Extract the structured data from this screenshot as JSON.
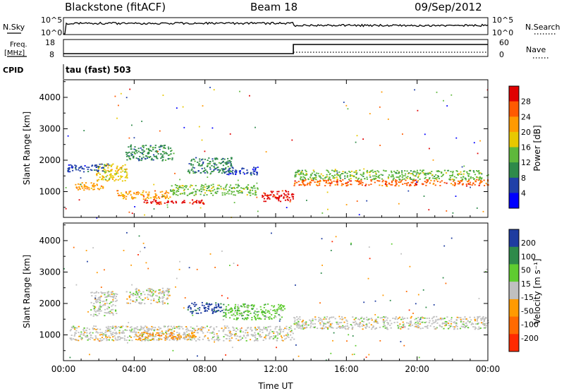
{
  "header": {
    "station": "Blackstone (fitACF)",
    "beam": "Beam 18",
    "date": "09/Sep/2012"
  },
  "top_panels": {
    "nsky_label": "N.Sky",
    "nsky_ticks": [
      "10^5",
      "10^0"
    ],
    "nsearch_label": "N.Search",
    "nsearch_ticks": [
      "10^5",
      "10^0"
    ],
    "freq_label_1": "Freq.",
    "freq_label_2": "[MHz]",
    "freq_ticks": [
      "18",
      "8"
    ],
    "nave_label": "Nave",
    "nave_ticks": [
      "60",
      "0"
    ],
    "cpid_label": "CPID",
    "cpid_text": "tau (fast) 503",
    "freq_step_hour": 13.0
  },
  "chart_data": [
    {
      "type": "heatmap",
      "name": "power-panel",
      "ylabel": "Slant Range [km]",
      "xlabel": "",
      "y_ticks": [
        1000,
        2000,
        3000,
        4000
      ],
      "ylim": [
        180,
        4560
      ],
      "x_ticks": [
        "00:00",
        "04:00",
        "08:00",
        "12:00",
        "16:00",
        "20:00",
        "00:00"
      ],
      "xlim_hours": [
        0,
        24
      ],
      "colorbar": {
        "label": "Power [dB]",
        "ticks": [
          "28",
          "24",
          "20",
          "16",
          "12",
          "8",
          "4"
        ],
        "colors": [
          "#e00000",
          "#ff5a00",
          "#ff9a00",
          "#e8c800",
          "#5fb83c",
          "#2e8a4a",
          "#2040a8",
          "#0000ff"
        ]
      },
      "echo_bands": [
        {
          "t": [
            0.5,
            2.2
          ],
          "r": [
            1050,
            1300
          ],
          "level": 2
        },
        {
          "t": [
            1.8,
            3.6
          ],
          "r": [
            1350,
            1900
          ],
          "level": 3
        },
        {
          "t": [
            3.0,
            6.0
          ],
          "r": [
            780,
            1050
          ],
          "level": 2
        },
        {
          "t": [
            4.5,
            8.0
          ],
          "r": [
            620,
            760
          ],
          "level": 0
        },
        {
          "t": [
            6.0,
            11.0
          ],
          "r": [
            900,
            1250
          ],
          "level": 4
        },
        {
          "t": [
            3.5,
            6.2
          ],
          "r": [
            2000,
            2500
          ],
          "level": 5
        },
        {
          "t": [
            7.0,
            9.5
          ],
          "r": [
            1600,
            2100
          ],
          "level": 5
        },
        {
          "t": [
            9.0,
            11.0
          ],
          "r": [
            1550,
            1800
          ],
          "level": 6
        },
        {
          "t": [
            11.2,
            13.0
          ],
          "r": [
            700,
            1050
          ],
          "level": 0
        },
        {
          "t": [
            13.0,
            24.0
          ],
          "r": [
            1200,
            1400
          ],
          "level": 1
        },
        {
          "t": [
            13.0,
            24.0
          ],
          "r": [
            1400,
            1700
          ],
          "level": 4
        },
        {
          "t": [
            0.2,
            2.5
          ],
          "r": [
            1650,
            1900
          ],
          "level": 6
        }
      ]
    },
    {
      "type": "heatmap",
      "name": "velocity-panel",
      "ylabel": "Slant Range [km]",
      "xlabel": "Time UT",
      "y_ticks": [
        1000,
        2000,
        3000,
        4000
      ],
      "ylim": [
        180,
        4560
      ],
      "x_ticks": [
        "00:00",
        "04:00",
        "08:00",
        "12:00",
        "16:00",
        "20:00",
        "00:00"
      ],
      "xlim_hours": [
        0,
        24
      ],
      "colorbar": {
        "label": "Velocity [m s⁻¹]",
        "ticks": [
          "200",
          "100",
          "50",
          "15",
          "-15",
          "-50",
          "-100",
          "-200"
        ],
        "colors": [
          "#1e3ca0",
          "#2e8a4a",
          "#5fcc30",
          "#c0c0c0",
          "#ff9a00",
          "#ff6a00",
          "#ff2a00"
        ]
      },
      "echo_bands": [
        {
          "t": [
            0.3,
            13.0
          ],
          "r": [
            830,
            1300
          ],
          "level": 3
        },
        {
          "t": [
            13.0,
            24.0
          ],
          "r": [
            1200,
            1600
          ],
          "level": 3
        },
        {
          "t": [
            4.0,
            7.5
          ],
          "r": [
            850,
            1100
          ],
          "level": 4
        },
        {
          "t": [
            7.0,
            9.0
          ],
          "r": [
            1700,
            2050
          ],
          "level": 0
        },
        {
          "t": [
            9.0,
            12.5
          ],
          "r": [
            1500,
            2000
          ],
          "level": 2
        },
        {
          "t": [
            3.5,
            6.0
          ],
          "r": [
            2000,
            2500
          ],
          "level": 3
        },
        {
          "t": [
            1.5,
            3.0
          ],
          "r": [
            1600,
            2400
          ],
          "level": 3
        }
      ]
    }
  ]
}
